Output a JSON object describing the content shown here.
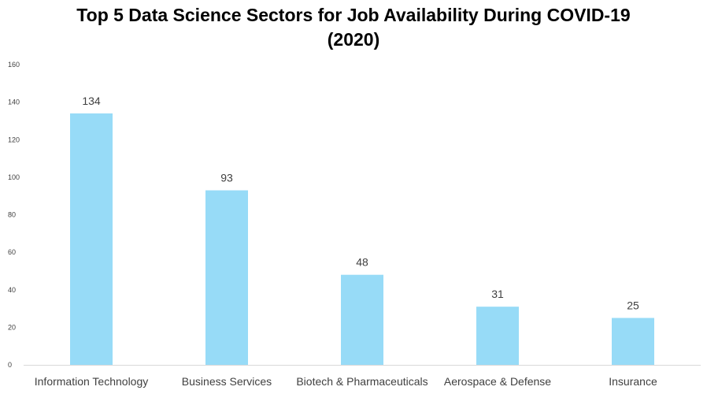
{
  "chart_data": {
    "type": "bar",
    "title": "Top 5 Data Science Sectors for Job Availability During COVID-19\n(2020)",
    "xlabel": "",
    "ylabel": "",
    "categories": [
      "Information Technology",
      "Business Services",
      "Biotech & Pharmaceuticals",
      "Aerospace & Defense",
      "Insurance"
    ],
    "values": [
      134,
      93,
      48,
      31,
      25
    ],
    "data_labels": [
      "134",
      "93",
      "48",
      "31",
      "25"
    ],
    "ylim": [
      0,
      160
    ],
    "yticks": [
      0,
      20,
      40,
      60,
      80,
      100,
      120,
      140,
      160
    ],
    "ytick_labels": [
      "0",
      "20",
      "40",
      "60",
      "80",
      "100",
      "120",
      "140",
      "160"
    ],
    "grid": false,
    "legend": "none",
    "bar_color": "#97DBF7",
    "axis_color": "#D9D9D9",
    "text_color": "#404040"
  }
}
